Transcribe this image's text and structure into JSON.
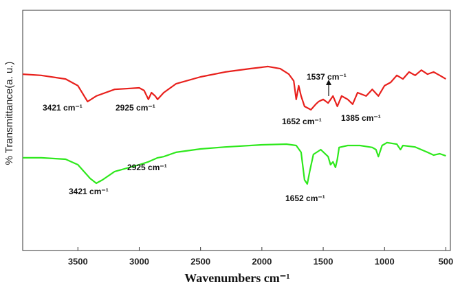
{
  "chart_data": {
    "type": "line",
    "x_label": "Wavenumbers cm⁻¹",
    "y_label": "% Transmittance(a. u.)",
    "xlim": [
      3950,
      480
    ],
    "xticks": [
      3500,
      3000,
      2500,
      2000,
      1500,
      1000,
      500
    ],
    "ylim": [
      0,
      100
    ],
    "series": [
      {
        "color": "#e8201c",
        "x": [
          3950,
          3800,
          3600,
          3500,
          3421,
          3350,
          3200,
          3000,
          2960,
          2925,
          2900,
          2870,
          2850,
          2800,
          2700,
          2500,
          2300,
          2100,
          1950,
          1850,
          1780,
          1740,
          1720,
          1700,
          1680,
          1652,
          1600,
          1560,
          1537,
          1500,
          1460,
          1420,
          1385,
          1350,
          1300,
          1260,
          1220,
          1150,
          1100,
          1050,
          1000,
          950,
          900,
          850,
          800,
          750,
          700,
          650,
          600,
          550,
          500
        ],
        "values": [
          73.4,
          72.9,
          71.4,
          68.6,
          62.0,
          64.3,
          67.1,
          67.7,
          66.6,
          62.9,
          65.7,
          64.3,
          62.9,
          65.7,
          69.4,
          72.3,
          74.3,
          75.7,
          76.6,
          75.7,
          73.4,
          70.6,
          62.9,
          68.6,
          64.3,
          60.0,
          58.6,
          60.9,
          62.0,
          62.9,
          61.4,
          64.3,
          60.0,
          64.3,
          62.9,
          60.9,
          65.7,
          64.3,
          67.1,
          64.3,
          68.6,
          70.0,
          72.9,
          71.4,
          74.3,
          72.9,
          75.1,
          73.4,
          74.3,
          72.9,
          71.4
        ]
      },
      {
        "color": "#2ee81c",
        "x": [
          3950,
          3800,
          3600,
          3500,
          3400,
          3350,
          3300,
          3200,
          3000,
          2925,
          2850,
          2800,
          2700,
          2500,
          2300,
          2000,
          1800,
          1720,
          1680,
          1652,
          1630,
          1610,
          1580,
          1520,
          1460,
          1440,
          1420,
          1400,
          1385,
          1370,
          1300,
          1200,
          1100,
          1070,
          1050,
          1020,
          980,
          900,
          870,
          850,
          750,
          650,
          600,
          550,
          500
        ],
        "values": [
          38.6,
          38.6,
          38.0,
          35.7,
          30.0,
          28.0,
          29.4,
          32.9,
          35.7,
          36.9,
          38.6,
          39.1,
          40.9,
          42.3,
          43.1,
          44.0,
          44.3,
          43.7,
          40.9,
          29.4,
          27.7,
          32.9,
          40.0,
          42.0,
          39.1,
          35.7,
          36.9,
          34.6,
          38.0,
          42.9,
          43.7,
          43.7,
          42.9,
          42.0,
          39.1,
          43.7,
          44.9,
          44.3,
          42.0,
          43.7,
          43.1,
          40.9,
          39.7,
          40.3,
          39.4
        ]
      }
    ],
    "annotations": [
      "3421 cm⁻¹",
      "2925 cm⁻¹",
      "1537 cm⁻¹",
      "1652 cm⁻¹",
      "1385 cm⁻¹",
      "3421 cm⁻¹",
      "2925 cm⁻¹",
      "1652 cm⁻¹"
    ]
  }
}
